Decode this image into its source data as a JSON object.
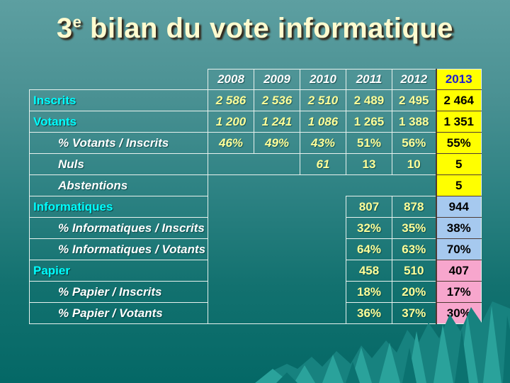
{
  "slide": {
    "title": {
      "base": "3",
      "sup": "e",
      "rest": " bilan du vote informatique"
    }
  },
  "table": {
    "years": [
      "2008",
      "2009",
      "2010",
      "2011",
      "2012",
      "2013"
    ],
    "rows": [
      {
        "label": "Inscrits",
        "kind": "section",
        "cells": [
          {
            "t": "2 586",
            "i": 1
          },
          {
            "t": "2 536",
            "i": 1
          },
          {
            "t": "2 510",
            "i": 1
          },
          {
            "t": "2 489"
          },
          {
            "t": "2 495"
          },
          {
            "t": "2 464",
            "hl": "y"
          }
        ]
      },
      {
        "label": "Votants",
        "kind": "section",
        "cells": [
          {
            "t": "1 200",
            "i": 1
          },
          {
            "t": "1 241",
            "i": 1
          },
          {
            "t": "1 086",
            "i": 1
          },
          {
            "t": "1 265"
          },
          {
            "t": "1 388"
          },
          {
            "t": "1 351",
            "hl": "y"
          }
        ]
      },
      {
        "label": "% Votants / Inscrits",
        "kind": "sub",
        "cells": [
          {
            "t": "46%",
            "i": 1
          },
          {
            "t": "49%",
            "i": 1
          },
          {
            "t": "43%",
            "i": 1
          },
          {
            "t": "51%"
          },
          {
            "t": "56%"
          },
          {
            "t": "55%",
            "hl": "y"
          }
        ]
      },
      {
        "label": "Nuls",
        "kind": "sub",
        "cells": [
          {
            "t": "",
            "cls": "gap",
            "span": 2
          },
          {
            "t": "61",
            "i": 1
          },
          {
            "t": "13"
          },
          {
            "t": "10"
          },
          {
            "t": "5",
            "hl": "y"
          }
        ]
      },
      {
        "label": "Abstentions",
        "kind": "sub",
        "cells": [
          {
            "t": "",
            "cls": "abst",
            "span": 5
          },
          {
            "t": "5",
            "hl": "y"
          }
        ]
      },
      {
        "label": "Informatiques",
        "kind": "section",
        "cells": [
          {
            "t": "",
            "cls": "void",
            "span": 3,
            "rowspan": 6
          },
          {
            "t": "807"
          },
          {
            "t": "878"
          },
          {
            "t": "944",
            "hl": "b"
          }
        ]
      },
      {
        "label": "% Informatiques / Inscrits",
        "kind": "sub",
        "cells": [
          {
            "t": "32%"
          },
          {
            "t": "35%"
          },
          {
            "t": "38%",
            "hl": "b"
          }
        ]
      },
      {
        "label": "% Informatiques / Votants",
        "kind": "sub",
        "cells": [
          {
            "t": "64%"
          },
          {
            "t": "63%"
          },
          {
            "t": "70%",
            "hl": "b"
          }
        ]
      },
      {
        "label": "Papier",
        "kind": "section",
        "cells": [
          {
            "t": "458"
          },
          {
            "t": "510"
          },
          {
            "t": "407",
            "hl": "p"
          }
        ]
      },
      {
        "label": "% Papier / Inscrits",
        "kind": "sub",
        "cells": [
          {
            "t": "18%"
          },
          {
            "t": "20%"
          },
          {
            "t": "17%",
            "hl": "p"
          }
        ]
      },
      {
        "label": "% Papier / Votants",
        "kind": "sub",
        "cells": [
          {
            "t": "36%"
          },
          {
            "t": "37%"
          },
          {
            "t": "30%",
            "hl": "p"
          }
        ]
      }
    ]
  },
  "colors": {
    "highlight_2013": "#ffff00",
    "highlight_informatiques": "#a6c9ef",
    "highlight_papier": "#f7a6cd",
    "year_2013_text": "#1d1dcf",
    "section_label": "#00ffff",
    "value_text": "#ffff99",
    "background_top": "#5d9fa1",
    "background_bottom": "#046866"
  }
}
